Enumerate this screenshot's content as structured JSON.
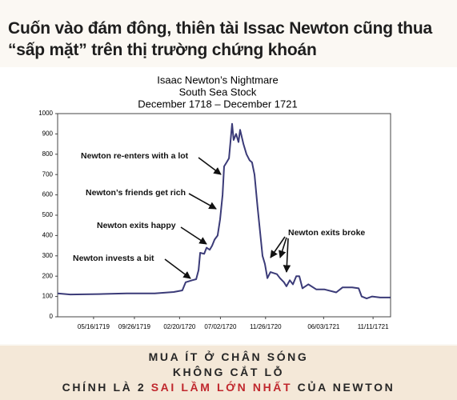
{
  "header": {
    "title_lines": [
      "Cuốn vào đám đông, thiên tài Issac Newton cũng thua",
      "“sấp mặt” trên thị trường chứng khoán"
    ]
  },
  "chart_data": {
    "type": "line",
    "title_lines": [
      "Isaac Newton’s Nightmare",
      "South Sea Stock",
      "December 1718 – December 1721"
    ],
    "color": "#3b3b78",
    "x": [
      "01/19/1719",
      "03/01/1719",
      "06/01/1719",
      "09/01/1719",
      "12/01/1719",
      "02/01/1720",
      "02/29/1720",
      "03/11/1720",
      "04/01/1720",
      "04/14/1720",
      "04/22/1720",
      "04/27/1720",
      "05/10/1720",
      "05/18/1720",
      "05/28/1720",
      "06/05/1720",
      "06/13/1720",
      "06/23/1720",
      "07/01/1720",
      "07/09/1720",
      "07/14/1720",
      "07/22/1720",
      "07/30/1720",
      "08/09/1720",
      "08/14/1720",
      "08/22/1720",
      "08/30/1720",
      "09/04/1720",
      "09/15/1720",
      "09/25/1720",
      "10/05/1720",
      "10/13/1720",
      "10/21/1720",
      "10/31/1720",
      "11/08/1720",
      "11/16/1720",
      "11/24/1720",
      "12/02/1720",
      "12/12/1720",
      "01/02/1721",
      "01/12/1721",
      "01/25/1721",
      "02/02/1721",
      "02/13/1721",
      "02/23/1721",
      "03/06/1721",
      "03/16/1721",
      "03/26/1721",
      "04/14/1721",
      "05/10/1721",
      "06/05/1721",
      "07/14/1721",
      "08/04/1721",
      "09/04/1721",
      "09/25/1721",
      "10/05/1721",
      "10/21/1721",
      "11/08/1721",
      "12/04/1721",
      "01/07/1722"
    ],
    "values": [
      115,
      110,
      112,
      115,
      115,
      122,
      130,
      170,
      180,
      185,
      230,
      315,
      310,
      340,
      330,
      350,
      380,
      400,
      480,
      600,
      740,
      760,
      780,
      950,
      870,
      900,
      860,
      920,
      850,
      800,
      770,
      760,
      700,
      540,
      420,
      300,
      260,
      190,
      220,
      210,
      190,
      170,
      150,
      180,
      160,
      200,
      200,
      140,
      160,
      135,
      135,
      120,
      145,
      145,
      140,
      100,
      90,
      100,
      95,
      95
    ],
    "xlim": [
      "01/19/1719",
      "01/07/1722"
    ],
    "xticks": [
      "05/16/1719",
      "09/26/1719",
      "02/20/1720",
      "07/02/1720",
      "11/26/1720",
      "06/03/1721",
      "11/11/1721"
    ],
    "ylim": [
      0,
      1000
    ],
    "yticks": [
      0,
      100,
      200,
      300,
      400,
      500,
      600,
      700,
      800,
      900,
      1000
    ],
    "grid": false,
    "annotations": [
      "Newton re-enters with a lot",
      "Newton’s friends get rich",
      "Newton exits happy",
      "Newton invests a bit",
      "Newton exits broke"
    ]
  },
  "footer": {
    "lines": [
      "MUA ÍT Ở CHÂN SÓNG",
      "KHÔNG CẮT LỖ"
    ],
    "last_line": [
      "CHÍNH LÀ 2",
      "SAI LẦM LỚN NHẤT",
      "CỦA NEWTON"
    ]
  }
}
